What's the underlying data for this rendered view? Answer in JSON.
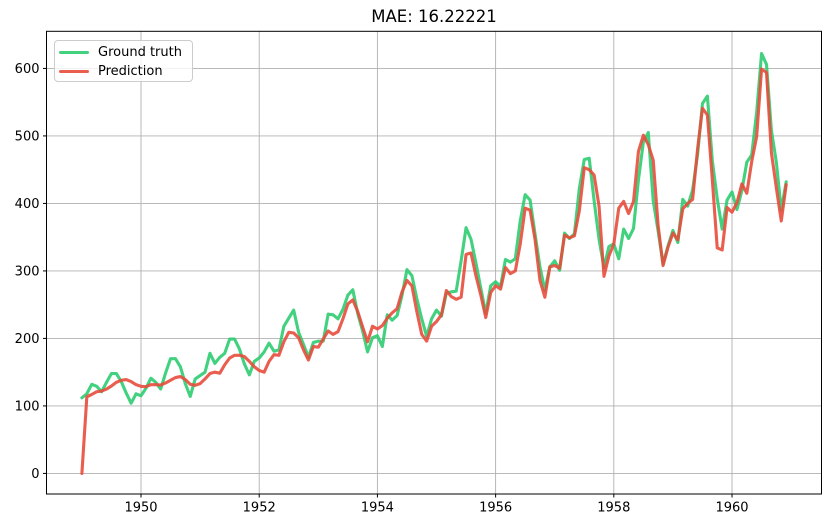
{
  "chart_data": {
    "type": "line",
    "title": "MAE: 16.22221",
    "x_unit": "monthly",
    "x_start_year": 1949,
    "xlim": [
      1948.401,
      1961.514
    ],
    "ylim": [
      -30.5,
      655.0
    ],
    "xticks": [
      "1950",
      "1952",
      "1954",
      "1956",
      "1958",
      "1960"
    ],
    "xtick_years": [
      1950,
      1952,
      1954,
      1956,
      1958,
      1960
    ],
    "yticks": [
      "0",
      "100",
      "200",
      "300",
      "400",
      "500",
      "600"
    ],
    "ytick_values": [
      0,
      100,
      200,
      300,
      400,
      500,
      600
    ],
    "grid": true,
    "legend_position": "upper left",
    "line_alpha": 0.9,
    "line_width": 3.1,
    "series": [
      {
        "name": "Ground truth",
        "color": "#2ecc71",
        "values": [
          112,
          118,
          132,
          129,
          121,
          135,
          148,
          148,
          136,
          119,
          104,
          118,
          115,
          126,
          141,
          135,
          125,
          149,
          170,
          170,
          158,
          133,
          114,
          140,
          145,
          150,
          178,
          163,
          172,
          178,
          199,
          199,
          184,
          162,
          146,
          166,
          171,
          180,
          193,
          181,
          183,
          218,
          230,
          242,
          209,
          191,
          172,
          194,
          196,
          196,
          236,
          235,
          229,
          243,
          264,
          272,
          237,
          211,
          180,
          201,
          204,
          188,
          235,
          227,
          234,
          264,
          302,
          293,
          259,
          229,
          203,
          229,
          242,
          233,
          267,
          269,
          270,
          315,
          364,
          347,
          312,
          274,
          237,
          278,
          284,
          277,
          317,
          313,
          318,
          374,
          413,
          405,
          355,
          306,
          271,
          306,
          315,
          301,
          356,
          348,
          355,
          422,
          465,
          467,
          404,
          347,
          305,
          336,
          340,
          318,
          362,
          348,
          363,
          435,
          491,
          505,
          404,
          359,
          310,
          337,
          360,
          342,
          406,
          396,
          420,
          472,
          548,
          559,
          463,
          407,
          362,
          405,
          417,
          391,
          419,
          461,
          472,
          535,
          622,
          606,
          508,
          461,
          390,
          432
        ]
      },
      {
        "name": "Prediction",
        "color": "#e74c3c",
        "values": [
          0,
          113.5,
          117,
          121,
          122,
          125,
          129.5,
          135,
          138,
          139,
          136,
          131.5,
          129,
          128.5,
          131.5,
          131.5,
          131,
          134,
          138,
          142,
          143.5,
          139,
          132,
          130.5,
          133,
          140,
          148,
          150,
          148.5,
          161,
          171,
          175,
          175,
          173,
          166,
          158,
          152.5,
          150,
          166,
          176,
          175,
          195,
          209,
          208,
          201,
          183,
          168,
          188,
          187,
          199,
          211,
          206,
          210,
          229,
          251,
          257,
          240,
          217,
          195,
          218,
          214,
          219,
          230,
          238,
          244,
          269,
          286,
          278,
          240,
          206,
          196,
          218,
          225,
          235,
          271,
          262,
          258,
          261,
          324.5,
          326.5,
          293,
          264,
          231,
          268,
          278,
          273,
          305,
          296,
          300,
          340,
          393,
          390,
          347,
          286,
          261,
          306,
          308,
          304,
          353,
          349,
          352,
          389,
          453,
          450,
          442,
          396,
          292,
          322,
          340,
          393,
          403,
          385,
          403,
          477,
          501,
          487,
          464,
          367,
          308,
          335,
          356,
          346,
          392,
          400,
          406,
          480,
          541,
          531,
          435,
          334,
          331,
          394,
          387,
          401,
          429,
          415,
          462,
          499,
          599,
          594,
          475,
          423,
          374,
          428
        ]
      }
    ]
  }
}
